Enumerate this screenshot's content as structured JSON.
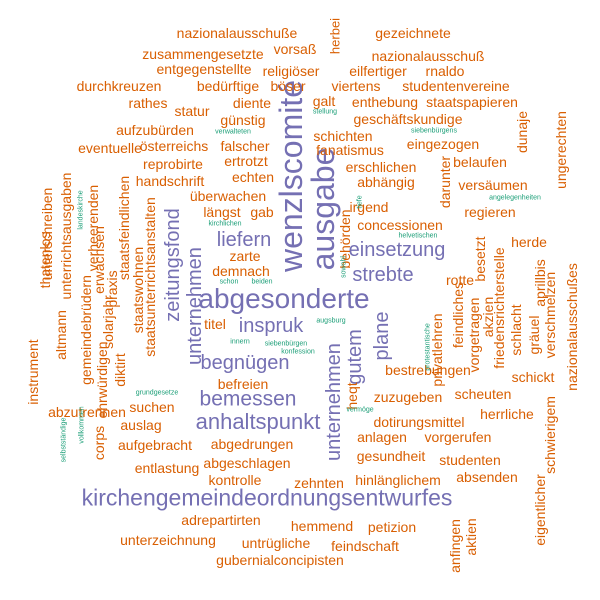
{
  "palette": {
    "purple": "#7570b3",
    "orange": "#d95f02",
    "teal": "#1b9e77"
  },
  "words": [
    {
      "id": "w-kirchengemeindeordnungsentwurfes",
      "text": "kirchengemeindeordnungsentwurfes",
      "color": "purple"
    },
    {
      "id": "w-abgesonderte",
      "text": "abgesonderte",
      "color": "purple"
    },
    {
      "id": "w-wenzlscomite",
      "text": "wenzlscomité",
      "color": "purple"
    },
    {
      "id": "w-ausgabe",
      "text": "ausgabe",
      "color": "purple"
    },
    {
      "id": "w-anhaltspunkt",
      "text": "anhaltspunkt",
      "color": "purple"
    },
    {
      "id": "w-bemessen",
      "text": "bemessen",
      "color": "purple"
    },
    {
      "id": "w-begnuegen",
      "text": "begnügen",
      "color": "purple"
    },
    {
      "id": "w-inspruk",
      "text": "inspruk",
      "color": "purple"
    },
    {
      "id": "w-liefern",
      "text": "liefern",
      "color": "purple"
    },
    {
      "id": "w-einsetzung",
      "text": "einsetzung",
      "color": "purple"
    },
    {
      "id": "w-strebte",
      "text": "strebte",
      "color": "purple"
    },
    {
      "id": "w-plane",
      "text": "plane",
      "color": "purple"
    },
    {
      "id": "w-gutem",
      "text": "gutem",
      "color": "purple"
    },
    {
      "id": "w-unternehmen-1",
      "text": "unternehmen",
      "color": "purple"
    },
    {
      "id": "w-unternehmen-2",
      "text": "unternehmen",
      "color": "purple"
    },
    {
      "id": "w-zeitungsfond",
      "text": "zeitungsfond",
      "color": "purple"
    },
    {
      "id": "w-nazionalausschuesse",
      "text": "nazionalausschuße",
      "color": "orange"
    },
    {
      "id": "w-gezeichnete",
      "text": "gezeichnete",
      "color": "orange"
    },
    {
      "id": "w-herbei",
      "text": "herbei",
      "color": "orange"
    },
    {
      "id": "w-zusammengesetzte",
      "text": "zusammengesetzte",
      "color": "orange"
    },
    {
      "id": "w-vorsass",
      "text": "vorsaß",
      "color": "orange"
    },
    {
      "id": "w-nazionalausschuss",
      "text": "nazionalausschuß",
      "color": "orange"
    },
    {
      "id": "w-entgegenstellte",
      "text": "entgegenstellte",
      "color": "orange"
    },
    {
      "id": "w-religioeser",
      "text": "religiöser",
      "color": "orange"
    },
    {
      "id": "w-eilfertiger",
      "text": "eilfertiger",
      "color": "orange"
    },
    {
      "id": "w-rnaldo",
      "text": "rnaldo",
      "color": "orange"
    },
    {
      "id": "w-durchkreuzen",
      "text": "durchkreuzen",
      "color": "orange"
    },
    {
      "id": "w-beduerftige",
      "text": "bedürftige",
      "color": "orange"
    },
    {
      "id": "w-boeser",
      "text": "böser",
      "color": "orange"
    },
    {
      "id": "w-viertens",
      "text": "viertens",
      "color": "orange"
    },
    {
      "id": "w-studentenvereine",
      "text": "studentenvereine",
      "color": "orange"
    },
    {
      "id": "w-rathes",
      "text": "rathes",
      "color": "orange"
    },
    {
      "id": "w-diente",
      "text": "diente",
      "color": "orange"
    },
    {
      "id": "w-galt",
      "text": "galt",
      "color": "orange"
    },
    {
      "id": "w-enthebung",
      "text": "enthebung",
      "color": "orange"
    },
    {
      "id": "w-staatspapieren",
      "text": "staatspapieren",
      "color": "orange"
    },
    {
      "id": "w-statur",
      "text": "statur",
      "color": "orange"
    },
    {
      "id": "w-guenstig",
      "text": "günstig",
      "color": "orange"
    },
    {
      "id": "w-geschaeftskundige",
      "text": "geschäftskundige",
      "color": "orange"
    },
    {
      "id": "w-aufzubuerden",
      "text": "aufzubürden",
      "color": "orange"
    },
    {
      "id": "w-schichten",
      "text": "schichten",
      "color": "orange"
    },
    {
      "id": "w-dunaje",
      "text": "dunaje",
      "color": "orange"
    },
    {
      "id": "w-ungerechten",
      "text": "ungerechten",
      "color": "orange"
    },
    {
      "id": "w-eventuelle",
      "text": "eventuelle",
      "color": "orange"
    },
    {
      "id": "w-oesterreichs",
      "text": "österreichs",
      "color": "orange"
    },
    {
      "id": "w-falscher",
      "text": "falscher",
      "color": "orange"
    },
    {
      "id": "w-fanatismus",
      "text": "fanatismus",
      "color": "orange"
    },
    {
      "id": "w-eingezogen",
      "text": "eingezogen",
      "color": "orange"
    },
    {
      "id": "w-reprobirte",
      "text": "reprobirte",
      "color": "orange"
    },
    {
      "id": "w-ertrotzt",
      "text": "ertrotzt",
      "color": "orange"
    },
    {
      "id": "w-erschlichen",
      "text": "erschlichen",
      "color": "orange"
    },
    {
      "id": "w-belaufen",
      "text": "belaufen",
      "color": "orange"
    },
    {
      "id": "w-handschrift",
      "text": "handschrift",
      "color": "orange"
    },
    {
      "id": "w-echten",
      "text": "echten",
      "color": "orange"
    },
    {
      "id": "w-abhaengig",
      "text": "abhängig",
      "color": "orange"
    },
    {
      "id": "w-versaeumen",
      "text": "versäumen",
      "color": "orange"
    },
    {
      "id": "w-ueberwachen",
      "text": "überwachen",
      "color": "orange"
    },
    {
      "id": "w-irgend",
      "text": "irgend",
      "color": "orange"
    },
    {
      "id": "w-laengst",
      "text": "längst",
      "color": "orange"
    },
    {
      "id": "w-gab",
      "text": "gab",
      "color": "orange"
    },
    {
      "id": "w-regieren",
      "text": "regieren",
      "color": "orange"
    },
    {
      "id": "w-concessionen",
      "text": "concessionen",
      "color": "orange"
    },
    {
      "id": "w-herde",
      "text": "herde",
      "color": "orange"
    },
    {
      "id": "w-zarte",
      "text": "zarte",
      "color": "orange"
    },
    {
      "id": "w-demnach",
      "text": "demnach",
      "color": "orange"
    },
    {
      "id": "w-rotte",
      "text": "rotte",
      "color": "orange"
    },
    {
      "id": "w-titel",
      "text": "titel",
      "color": "orange"
    },
    {
      "id": "w-befreien",
      "text": "befreien",
      "color": "orange"
    },
    {
      "id": "w-bestrebungen",
      "text": "bestrebungen",
      "color": "orange"
    },
    {
      "id": "w-suchen",
      "text": "suchen",
      "color": "orange"
    },
    {
      "id": "w-schickt",
      "text": "schickt",
      "color": "orange"
    },
    {
      "id": "w-zuzugeben",
      "text": "zuzugeben",
      "color": "orange"
    },
    {
      "id": "w-scheuten",
      "text": "scheuten",
      "color": "orange"
    },
    {
      "id": "w-abzutrennen",
      "text": "abzutrennen",
      "color": "orange"
    },
    {
      "id": "w-auslag",
      "text": "auslag",
      "color": "orange"
    },
    {
      "id": "w-dotirungsmittel",
      "text": "dotirungsmittel",
      "color": "orange"
    },
    {
      "id": "w-herrliche",
      "text": "herrliche",
      "color": "orange"
    },
    {
      "id": "w-anlagen",
      "text": "anlagen",
      "color": "orange"
    },
    {
      "id": "w-vorgerufen",
      "text": "vorgerufen",
      "color": "orange"
    },
    {
      "id": "w-aufgebracht",
      "text": "aufgebracht",
      "color": "orange"
    },
    {
      "id": "w-abgedrungen",
      "text": "abgedrungen",
      "color": "orange"
    },
    {
      "id": "w-gesundheit",
      "text": "gesundheit",
      "color": "orange"
    },
    {
      "id": "w-studenten",
      "text": "studenten",
      "color": "orange"
    },
    {
      "id": "w-entlastung",
      "text": "entlastung",
      "color": "orange"
    },
    {
      "id": "w-abgeschlagen",
      "text": "abgeschlagen",
      "color": "orange"
    },
    {
      "id": "w-absenden",
      "text": "absenden",
      "color": "orange"
    },
    {
      "id": "w-kontrolle",
      "text": "kontrolle",
      "color": "orange"
    },
    {
      "id": "w-zehnten",
      "text": "zehnten",
      "color": "orange"
    },
    {
      "id": "w-hinlaenglichem",
      "text": "hinlänglichem",
      "color": "orange"
    },
    {
      "id": "w-adrepartirten",
      "text": "adrepartirten",
      "color": "orange"
    },
    {
      "id": "w-hemmend",
      "text": "hemmend",
      "color": "orange"
    },
    {
      "id": "w-petizion",
      "text": "petizion",
      "color": "orange"
    },
    {
      "id": "w-unterzeichnung",
      "text": "unterzeichnung",
      "color": "orange"
    },
    {
      "id": "w-untruegliche",
      "text": "untrügliche",
      "color": "orange"
    },
    {
      "id": "w-feindschaft",
      "text": "feindschaft",
      "color": "orange"
    },
    {
      "id": "w-gubernialconcipisten",
      "text": "gubernialconcipisten",
      "color": "orange"
    },
    {
      "id": "w-instrument",
      "text": "instrument",
      "color": "orange"
    },
    {
      "id": "w-corps",
      "text": "corps",
      "color": "orange"
    },
    {
      "id": "w-ehrwuerdigen",
      "text": "ehrwürdigen",
      "color": "orange"
    },
    {
      "id": "w-altmann",
      "text": "altmann",
      "color": "orange"
    },
    {
      "id": "w-thatenlos",
      "text": "thatenlos",
      "color": "orange"
    },
    {
      "id": "w-unterschreiben",
      "text": "unterschreiben",
      "color": "orange"
    },
    {
      "id": "w-unterrichtsausgaben",
      "text": "unterrichtsausgaben",
      "color": "orange"
    },
    {
      "id": "w-gemeindebruedern",
      "text": "gemeindebrüdern",
      "color": "orange"
    },
    {
      "id": "w-verheerenden",
      "text": "verheerenden",
      "color": "orange"
    },
    {
      "id": "w-erwachsen",
      "text": "erwachsen",
      "color": "orange"
    },
    {
      "id": "w-solarjahr",
      "text": "solarjahr",
      "color": "orange"
    },
    {
      "id": "w-praxis",
      "text": "praxis",
      "color": "orange"
    },
    {
      "id": "w-diktirt",
      "text": "diktirt",
      "color": "orange"
    },
    {
      "id": "w-staatsfeindlichen",
      "text": "staatsfeindlichen",
      "color": "orange"
    },
    {
      "id": "w-staatswohnen",
      "text": "staatswohnen",
      "color": "orange"
    },
    {
      "id": "w-staatsunterrichtsanstalten",
      "text": "staatsunterrichtsanstalten",
      "color": "orange"
    },
    {
      "id": "w-behoerden",
      "text": "behörden",
      "color": "orange"
    },
    {
      "id": "w-heqt",
      "text": "heqt",
      "color": "orange"
    },
    {
      "id": "w-darunter",
      "text": "darunter",
      "color": "orange"
    },
    {
      "id": "w-feindliches",
      "text": "feindliches",
      "color": "orange"
    },
    {
      "id": "w-privatlehren",
      "text": "privatlehren",
      "color": "orange"
    },
    {
      "id": "w-vorgetragen",
      "text": "vorgetragen",
      "color": "orange"
    },
    {
      "id": "w-besetzt",
      "text": "besetzt",
      "color": "orange"
    },
    {
      "id": "w-akzien",
      "text": "akzien",
      "color": "orange"
    },
    {
      "id": "w-friedensrichterstelle",
      "text": "friedensrichterstelle",
      "color": "orange"
    },
    {
      "id": "w-schlacht",
      "text": "schlacht",
      "color": "orange"
    },
    {
      "id": "w-aprillbis",
      "text": "aprillbis",
      "color": "orange"
    },
    {
      "id": "w-graeuel",
      "text": "gräuel",
      "color": "orange"
    },
    {
      "id": "w-verschmelzen",
      "text": "verschmelzen",
      "color": "orange"
    },
    {
      "id": "w-nazionalausschusses",
      "text": "nazionalausschußes",
      "color": "orange"
    },
    {
      "id": "w-schwierigem",
      "text": "schwierigem",
      "color": "orange"
    },
    {
      "id": "w-eigentlicher",
      "text": "eigentlicher",
      "color": "orange"
    },
    {
      "id": "w-aktien",
      "text": "aktien",
      "color": "orange"
    },
    {
      "id": "w-anfingen",
      "text": "anfingen",
      "color": "orange"
    },
    {
      "id": "w-verwalteten",
      "text": "verwalteten",
      "color": "teal"
    },
    {
      "id": "w-siebenbuergens",
      "text": "siebenbürgens",
      "color": "teal"
    },
    {
      "id": "w-stellung",
      "text": "stellung",
      "color": "teal"
    },
    {
      "id": "w-landeskirche",
      "text": "landeskirche",
      "color": "teal"
    },
    {
      "id": "w-tiefe",
      "text": "tiefe",
      "color": "teal"
    },
    {
      "id": "w-angelegenheiten",
      "text": "angelegenheiten",
      "color": "teal"
    },
    {
      "id": "w-kirchlichen",
      "text": "kirchlichen",
      "color": "teal"
    },
    {
      "id": "w-helvetischen",
      "text": "helvetischen",
      "color": "teal"
    },
    {
      "id": "w-sowohl",
      "text": "sowohl",
      "color": "teal"
    },
    {
      "id": "w-schon",
      "text": "schon",
      "color": "teal"
    },
    {
      "id": "w-beiden",
      "text": "beiden",
      "color": "teal"
    },
    {
      "id": "w-augsburg",
      "text": "augsburg",
      "color": "teal"
    },
    {
      "id": "w-protestantische",
      "text": "protestantische",
      "color": "teal"
    },
    {
      "id": "w-innern",
      "text": "innern",
      "color": "teal"
    },
    {
      "id": "w-siebenbuergen",
      "text": "siebenbürgen",
      "color": "teal"
    },
    {
      "id": "w-konfession",
      "text": "konfession",
      "color": "teal"
    },
    {
      "id": "w-grundgesetze",
      "text": "grundgesetze",
      "color": "teal"
    },
    {
      "id": "w-vermoege",
      "text": "vermöge",
      "color": "teal"
    },
    {
      "id": "w-vollkommen",
      "text": "vollkommen",
      "color": "teal"
    },
    {
      "id": "w-selbststaendige",
      "text": "selbstständige",
      "color": "teal"
    }
  ]
}
